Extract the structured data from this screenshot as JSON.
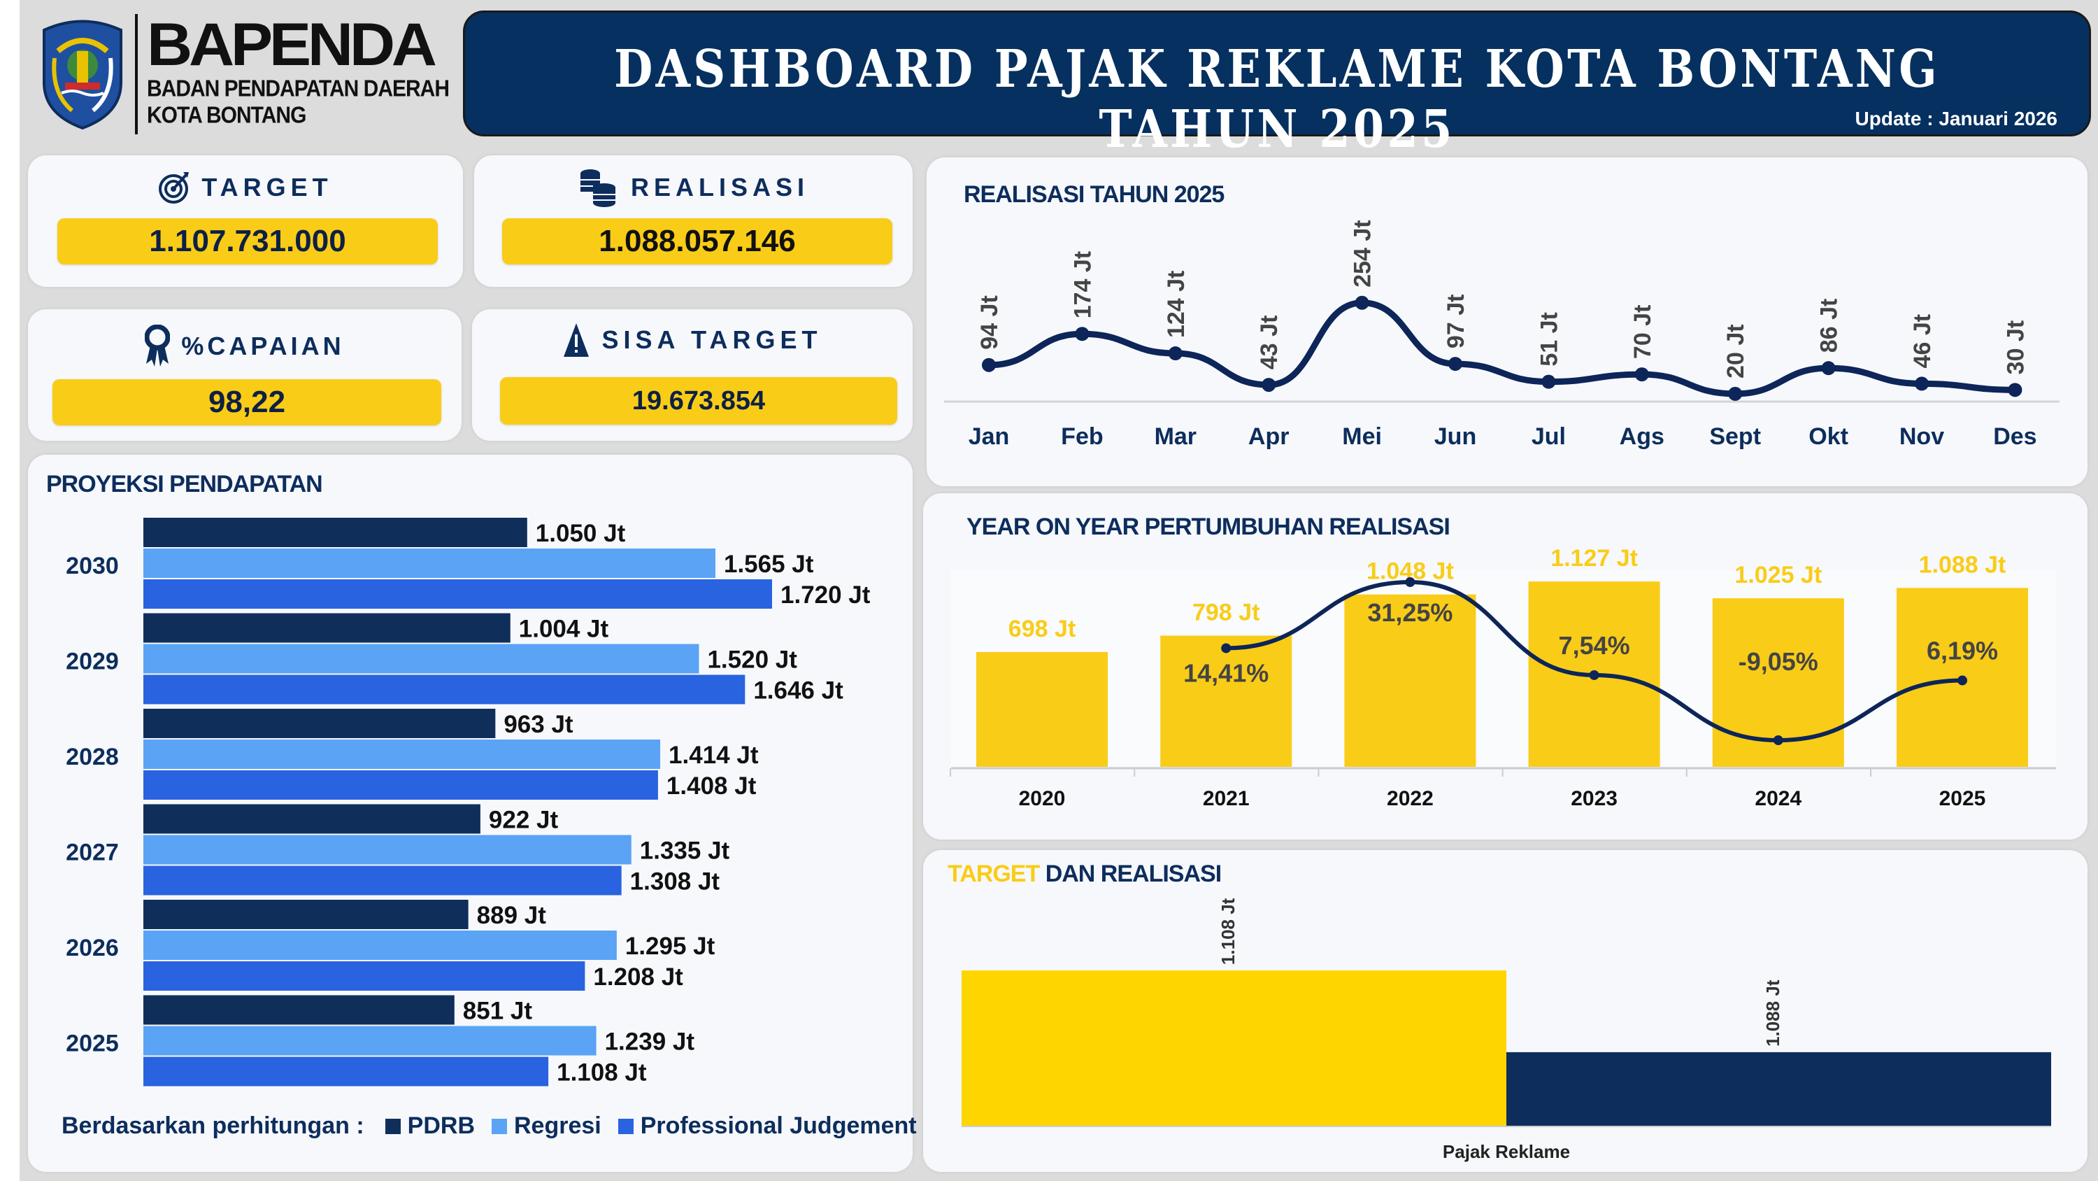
{
  "header": {
    "logo_title": "BAPENDA",
    "logo_sub1": "BADAN PENDAPATAN DAERAH",
    "logo_sub2": "KOTA BONTANG",
    "emblem_text": "KOTA BONTANG",
    "title": "DASHBOARD PAJAK REKLAME KOTA BONTANG TAHUN 2025",
    "update": "Update : Januari 2026"
  },
  "kpis": {
    "target": {
      "label": "TARGET",
      "value": "1.107.731.000",
      "icon": "target-icon"
    },
    "realisasi": {
      "label": "REALISASI",
      "value": "1.088.057.146",
      "icon": "coins-icon"
    },
    "capaian": {
      "label": "%CAPAIAN",
      "value": "98,22",
      "icon": "award-ribbon-icon"
    },
    "sisa": {
      "label": "SISA TARGET",
      "value": "19.673.854",
      "icon": "warning-icon"
    }
  },
  "colors": {
    "navy": "#0d2d5c",
    "yellow": "#f9cc17",
    "pdrb": "#0f2f5a",
    "regresi": "#5ba3f5",
    "pj": "#2a63e0",
    "target_bar": "#ffd500"
  },
  "chart_data": [
    {
      "id": "proyeksi",
      "type": "bar",
      "orientation": "horizontal",
      "title": "PROYEKSI PENDAPATAN",
      "unit": "Jt",
      "categories": [
        "2030",
        "2029",
        "2028",
        "2027",
        "2026",
        "2025"
      ],
      "series": [
        {
          "name": "PDRB",
          "values": [
            1050,
            1004,
            963,
            922,
            889,
            851
          ],
          "labels": [
            "1.050 Jt",
            "1.004 Jt",
            "963 Jt",
            "922 Jt",
            "889 Jt",
            "851 Jt"
          ]
        },
        {
          "name": "Regresi",
          "values": [
            1565,
            1520,
            1414,
            1335,
            1295,
            1239
          ],
          "labels": [
            "1.565 Jt",
            "1.520 Jt",
            "1.414 Jt",
            "1.335 Jt",
            "1.295 Jt",
            "1.239 Jt"
          ]
        },
        {
          "name": "Professional Judgement",
          "values": [
            1720,
            1646,
            1408,
            1308,
            1208,
            1108
          ],
          "labels": [
            "1.720 Jt",
            "1.646 Jt",
            "1.408 Jt",
            "1.308 Jt",
            "1.208 Jt",
            "1.108 Jt"
          ]
        }
      ],
      "legend_prefix": "Berdasarkan perhitungan :",
      "xlim": [
        0,
        1720
      ]
    },
    {
      "id": "realisasi",
      "type": "line",
      "title": "REALISASI TAHUN 2025",
      "unit": "Jt",
      "categories": [
        "Jan",
        "Feb",
        "Mar",
        "Apr",
        "Mei",
        "Jun",
        "Jul",
        "Ags",
        "Sept",
        "Okt",
        "Nov",
        "Des"
      ],
      "values": [
        94,
        174,
        124,
        43,
        254,
        97,
        51,
        70,
        20,
        86,
        46,
        30
      ],
      "labels": [
        "94 Jt",
        "174 Jt",
        "124 Jt",
        "43 Jt",
        "254 Jt",
        "97 Jt",
        "51 Jt",
        "70 Jt",
        "20 Jt",
        "86 Jt",
        "46 Jt",
        "30 Jt"
      ]
    },
    {
      "id": "yoy",
      "type": "bar",
      "title": "YEAR ON YEAR PERTUMBUHAN REALISASI",
      "categories": [
        "2020",
        "2021",
        "2022",
        "2023",
        "2024",
        "2025"
      ],
      "values": [
        698,
        798,
        1048,
        1127,
        1025,
        1088
      ],
      "labels": [
        "698 Jt",
        "798 Jt",
        "1.048 Jt",
        "1.127 Jt",
        "1.025 Jt",
        "1.088 Jt"
      ],
      "growth": {
        "categories": [
          "2021",
          "2022",
          "2023",
          "2024",
          "2025"
        ],
        "values": [
          14.41,
          31.25,
          7.54,
          -9.05,
          6.19
        ],
        "labels": [
          "14,41%",
          "31,25%",
          "7,54%",
          "-9,05%",
          "6,19%"
        ]
      }
    },
    {
      "id": "target_realisasi",
      "type": "bar",
      "title_part1": "TARGET",
      "title_part2": " DAN REALISASI",
      "categories": [
        "Pajak Reklame"
      ],
      "series": [
        {
          "name": "Target",
          "value": 1108,
          "label": "1.108 Jt"
        },
        {
          "name": "Realisasi",
          "value": 1088,
          "label": "1.088 Jt"
        }
      ],
      "ylim": [
        1070,
        1115
      ]
    }
  ]
}
